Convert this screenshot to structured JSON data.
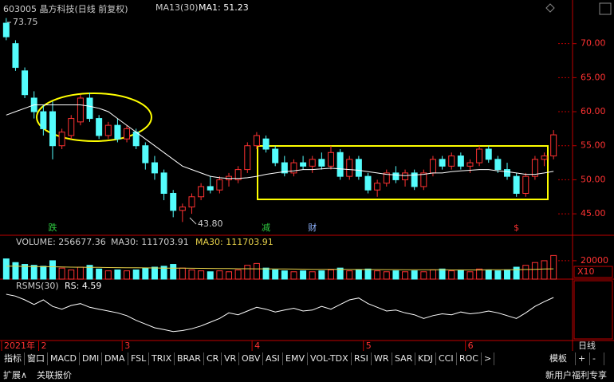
{
  "chart_data": [
    {
      "type": "candlestick",
      "title": "603005 晶方科技(日线 前复权)",
      "indicator_labels": [
        "MA13(30)",
        "MA1: 51.23"
      ],
      "annotations": [
        "73.75",
        "43.80"
      ],
      "markers": [
        {
          "index": 5,
          "text": "跌",
          "color": "#2ecc40"
        },
        {
          "index": 28,
          "text": "减",
          "color": "#2ecc40"
        },
        {
          "index": 33,
          "text": "财",
          "color": "#8fb4ff"
        },
        {
          "index": 55,
          "text": "$",
          "color": "#ff3232"
        }
      ],
      "categories": [
        "2021年",
        null,
        null,
        null,
        "2",
        null,
        null,
        null,
        null,
        null,
        null,
        null,
        null,
        "3",
        null,
        null,
        null,
        null,
        null,
        null,
        null,
        null,
        null,
        null,
        null,
        null,
        null,
        "4",
        null,
        null,
        null,
        null,
        null,
        null,
        null,
        null,
        null,
        null,
        null,
        "5",
        null,
        null,
        null,
        null,
        null,
        null,
        null,
        null,
        null,
        null,
        "6",
        null,
        null,
        null,
        null,
        null,
        null,
        null,
        null,
        null
      ],
      "period_label": "日线",
      "up_color": "#ff3232",
      "down_color": "#54fcfc",
      "candles": {
        "open": [
          73,
          70,
          66,
          62,
          60,
          60,
          55,
          56.5,
          58.5,
          62,
          59,
          56.5,
          58,
          56,
          57,
          55,
          52.5,
          51,
          48,
          45.5,
          46,
          47.5,
          49,
          48.5,
          50,
          50,
          51.5,
          55,
          56,
          54.5,
          52.5,
          51,
          52.5,
          52,
          53,
          52,
          54,
          50.5,
          53,
          50.5,
          48.5,
          49.5,
          51,
          50,
          51,
          49,
          51,
          53,
          52,
          53.5,
          52,
          52.5,
          54.5,
          53,
          51.5,
          50.5,
          48,
          50.5,
          53,
          53.5
        ],
        "high": [
          73.75,
          70.5,
          66.5,
          63,
          61,
          61.5,
          57.5,
          59.5,
          62.5,
          62.8,
          59.5,
          58.5,
          59,
          58,
          57.5,
          55.5,
          53.5,
          51.5,
          48.5,
          46.5,
          48,
          49.5,
          50.5,
          50.5,
          51,
          52,
          55.5,
          57,
          56.5,
          55,
          53.5,
          53,
          53.5,
          53.5,
          54,
          55,
          54.5,
          53.5,
          53.5,
          51,
          50,
          51.5,
          52,
          51.5,
          51.5,
          51.5,
          53.5,
          53.5,
          54,
          54,
          53,
          55,
          55,
          53.5,
          52.5,
          51,
          51,
          53.5,
          54,
          57.3
        ],
        "low": [
          70.5,
          66,
          62,
          59,
          56.5,
          53,
          54.5,
          56,
          58,
          58.5,
          56,
          56,
          55.5,
          55.5,
          54.5,
          51.5,
          50,
          47,
          44.5,
          43.8,
          45,
          47,
          48,
          48,
          49,
          49.5,
          51,
          54.5,
          54,
          52,
          50.5,
          50.5,
          51.5,
          51,
          51.5,
          51.5,
          50,
          50,
          50,
          48,
          47.5,
          49,
          49.5,
          49,
          48.5,
          48.5,
          50.5,
          51.5,
          51.5,
          51.5,
          51,
          52,
          52.5,
          51,
          50,
          47.5,
          47.5,
          50,
          52,
          53
        ],
        "close": [
          71,
          66.5,
          62.5,
          60,
          57.5,
          55,
          57,
          59,
          62,
          59,
          56.5,
          58,
          56,
          57.5,
          55,
          52.5,
          51,
          48,
          45.5,
          46,
          47.5,
          49,
          48.5,
          50,
          50.5,
          51.5,
          55,
          56.5,
          54.5,
          52.5,
          51,
          52.5,
          52,
          53,
          52,
          54,
          50.5,
          53,
          50.5,
          48.5,
          49.5,
          51,
          50,
          51,
          49,
          51,
          53,
          52,
          53.5,
          52,
          52.5,
          54.5,
          53,
          51.5,
          50.5,
          48,
          50.5,
          53,
          53.5,
          56.6
        ]
      },
      "lines": [
        {
          "color": "#ffffff",
          "values": [
            59.5,
            60,
            60.5,
            61,
            61,
            61,
            61,
            61,
            61,
            60.8,
            60.5,
            60,
            59,
            58,
            57,
            56,
            55,
            54,
            53,
            52,
            51.5,
            51,
            50.5,
            50.3,
            50.2,
            50.2,
            50.3,
            50.5,
            50.8,
            51,
            51.2,
            51.3,
            51.5,
            51.5,
            51.6,
            51.7,
            51.6,
            51.5,
            51.4,
            51.2,
            51,
            50.8,
            50.7,
            50.6,
            50.7,
            50.8,
            51,
            51,
            51.2,
            51.3,
            51.4,
            51.5,
            51.5,
            51.3,
            51.2,
            51,
            50.8,
            50.8,
            51,
            51.23
          ]
        }
      ],
      "ylim": [
        42.2,
        75
      ],
      "yticks": [
        {
          "value": 45,
          "label": "45.00"
        },
        {
          "value": 50,
          "label": "50.00"
        },
        {
          "value": 55,
          "label": "55.00"
        },
        {
          "value": 60,
          "label": "60.00"
        },
        {
          "value": 65,
          "label": "65.00"
        },
        {
          "value": 70,
          "label": "70.00"
        }
      ]
    },
    {
      "type": "bar",
      "indicator_labels": [
        "VOLUME: 256677.36",
        "MA30: 111703.91",
        "MA30: 111703.91"
      ],
      "scale_label": "X10",
      "values": [
        22000,
        18000,
        16000,
        15000,
        14000,
        20000,
        12000,
        10000,
        13000,
        15000,
        11000,
        9000,
        10000,
        9000,
        10000,
        12000,
        13000,
        14000,
        16000,
        12000,
        10000,
        9000,
        8000,
        9000,
        8000,
        10000,
        15000,
        17000,
        12000,
        10000,
        9000,
        8000,
        9000,
        8000,
        9000,
        10000,
        12000,
        9000,
        10000,
        11000,
        9000,
        8000,
        9000,
        8000,
        9000,
        8000,
        10000,
        11000,
        9000,
        10000,
        8000,
        11000,
        10000,
        9000,
        10000,
        13000,
        15000,
        18000,
        20000,
        25667.736
      ],
      "lines": [
        {
          "color": "#e8d24a",
          "values": [
            14000,
            14000,
            13800,
            13600,
            13500,
            13400,
            13200,
            13000,
            12900,
            12800,
            12700,
            12600,
            12500,
            12400,
            12300,
            12200,
            12100,
            12000,
            12000,
            11900,
            11800,
            11700,
            11600,
            11500,
            11400,
            11300,
            11300,
            11200,
            11200,
            11100,
            11000,
            10900,
            10800,
            10700,
            10700,
            10600,
            10600,
            10500,
            10500,
            10400,
            10400,
            10300,
            10300,
            10200,
            10200,
            10100,
            10100,
            10100,
            10000,
            10000,
            10000,
            10000,
            10100,
            10100,
            10200,
            10300,
            10500,
            10700,
            11000,
            11170.391
          ]
        }
      ],
      "ylim": [
        0,
        39000
      ],
      "yticks": [
        20000
      ]
    },
    {
      "type": "line",
      "indicator_labels": [
        "RSMS(30)",
        "RS: 4.59"
      ],
      "color": "#ffffff",
      "values": [
        8,
        6,
        2,
        -3,
        2,
        -5,
        -8,
        -4,
        -2,
        -6,
        -8,
        -10,
        -12,
        -15,
        -20,
        -24,
        -28,
        -30,
        -32,
        -31,
        -29,
        -26,
        -22,
        -18,
        -12,
        -14,
        -10,
        -6,
        -8,
        -11,
        -9,
        -7,
        -10,
        -9,
        -5,
        -8,
        -3,
        2,
        4,
        -2,
        -6,
        -10,
        -9,
        -12,
        -14,
        -18,
        -15,
        -13,
        -14,
        -11,
        -13,
        -12,
        -10,
        -12,
        -15,
        -18,
        -12,
        -5,
        0,
        4.59
      ],
      "ylim": [
        -40,
        20
      ]
    }
  ],
  "ui": {
    "tabs": [
      "指标",
      "窗口",
      "MACD",
      "DMI",
      "DMA",
      "FSL",
      "TRIX",
      "BRAR",
      "CR",
      "VR",
      "OBV",
      "ASI",
      "EMV",
      "VOL-TDX",
      "RSI",
      "WR",
      "SAR",
      "KDJ",
      "CCI",
      "ROC",
      ">"
    ],
    "right_tabs": [
      "模板",
      "+",
      "-"
    ],
    "bottom_left": [
      "扩展∧",
      "关联报价"
    ],
    "bottom_right": "新用户福利专享"
  }
}
